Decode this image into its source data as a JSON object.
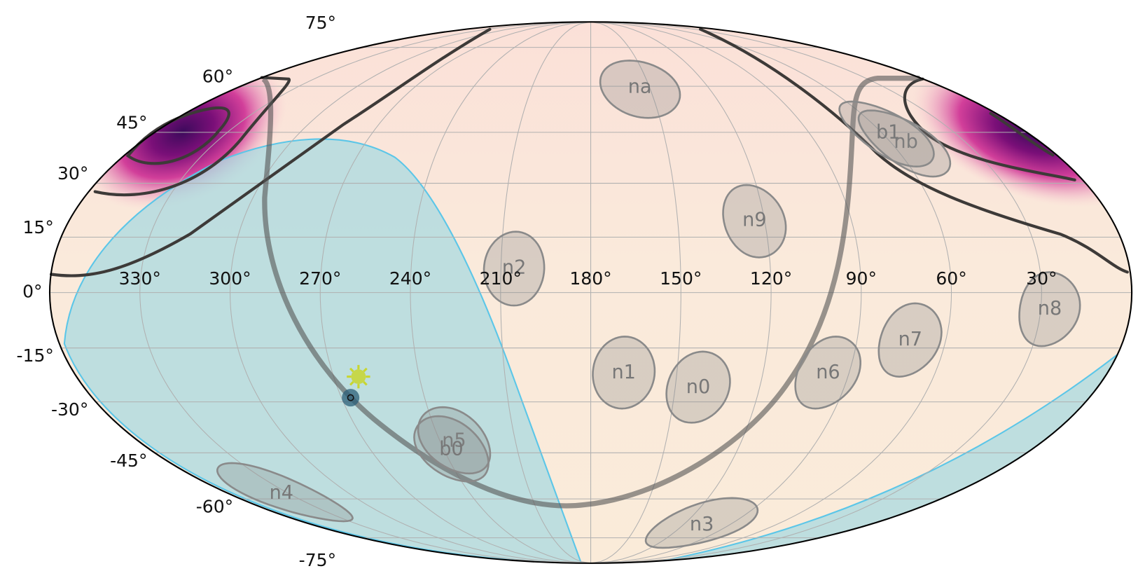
{
  "chart_data": {
    "type": "skymap",
    "projection": "mollweide",
    "grid": true,
    "xticks": [
      {
        "value": 330,
        "label": "330°"
      },
      {
        "value": 300,
        "label": "300°"
      },
      {
        "value": 270,
        "label": "270°"
      },
      {
        "value": 240,
        "label": "240°"
      },
      {
        "value": 210,
        "label": "210°"
      },
      {
        "value": 180,
        "label": "180°"
      },
      {
        "value": 150,
        "label": "150°"
      },
      {
        "value": 120,
        "label": "120°"
      },
      {
        "value": 90,
        "label": "90°"
      },
      {
        "value": 60,
        "label": "60°"
      },
      {
        "value": 30,
        "label": "30°"
      }
    ],
    "yticks": [
      {
        "value": 75,
        "label": "75°"
      },
      {
        "value": 60,
        "label": "60°"
      },
      {
        "value": 45,
        "label": "45°"
      },
      {
        "value": 30,
        "label": "30°"
      },
      {
        "value": 15,
        "label": "15°"
      },
      {
        "value": 0,
        "label": "0°"
      },
      {
        "value": -15,
        "label": "-15°"
      },
      {
        "value": -30,
        "label": "-30°"
      },
      {
        "value": -45,
        "label": "-45°"
      },
      {
        "value": -60,
        "label": "-60°"
      },
      {
        "value": -75,
        "label": "-75°"
      }
    ],
    "detectors": [
      {
        "name": "n0",
        "lon": 141.8,
        "lat": -26
      },
      {
        "name": "n1",
        "lon": 168.5,
        "lat": -21.9
      },
      {
        "name": "n2",
        "lon": 205.6,
        "lat": 6.5
      },
      {
        "name": "n3",
        "lon": 107.8,
        "lat": -69.7
      },
      {
        "name": "n4",
        "lon": 333.8,
        "lat": -58.2
      },
      {
        "name": "n5",
        "lon": 234.4,
        "lat": -41.5
      },
      {
        "name": "n6",
        "lon": 97.3,
        "lat": -21.9
      },
      {
        "name": "n7",
        "lon": 72,
        "lat": -12.9
      },
      {
        "name": "n8",
        "lon": 27,
        "lat": -4.5
      },
      {
        "name": "n9",
        "lon": 123.5,
        "lat": 19.5
      },
      {
        "name": "na",
        "lon": 155,
        "lat": 59.5
      },
      {
        "name": "nb",
        "lon": 54,
        "lat": 41.9
      },
      {
        "name": "b0",
        "lon": 237,
        "lat": -44.1
      },
      {
        "name": "b1",
        "lon": 57.5,
        "lat": 44.8
      }
    ],
    "sun": {
      "lon": 261.3,
      "lat": -22.9
    },
    "source": {
      "lon": 266.7,
      "lat": -28.8
    }
  }
}
